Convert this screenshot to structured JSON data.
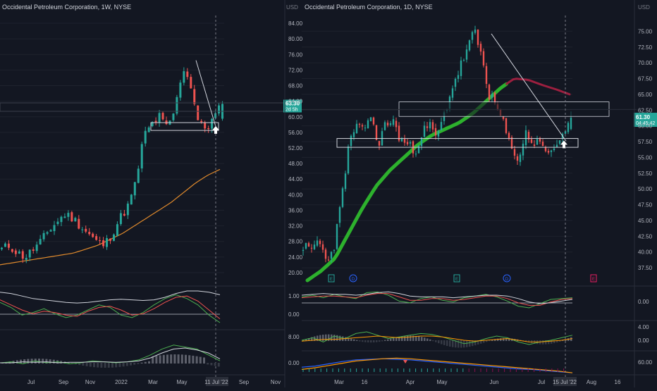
{
  "colors": {
    "background": "#131722",
    "grid": "#1e222d",
    "divider": "#2a2e39",
    "axis_text": "#b2b5be",
    "bull": "#26a69a",
    "bear": "#ef5350",
    "ma_up": "#2db12d",
    "ma_down": "#9c1f3f",
    "ma_weekly": "#e08a2c",
    "price_label_bg": "#26a69a",
    "white": "#d1d4dc",
    "macd_fast": "#4caf50",
    "macd_slow": "#ef5350",
    "osc_orange": "#ff9800",
    "osc_blue": "#2962ff"
  },
  "left_chart": {
    "title": "Occidental Petroleum Corporation, 1W, NYSE",
    "currency": "USD",
    "price_ticks": [
      "84.00",
      "80.00",
      "76.00",
      "72.00",
      "68.00",
      "64.00",
      "60.00",
      "56.00",
      "52.00",
      "48.00",
      "44.00",
      "40.00",
      "36.00",
      "32.00",
      "28.00",
      "24.00",
      "20.00"
    ],
    "last_price": "63.30",
    "countdown": "2d 5h",
    "osc1_ticks": [
      "1.00",
      "0.00"
    ],
    "osc2_ticks": [
      "8.00",
      "0.00"
    ],
    "time_ticks": [
      "Jul",
      "Sep",
      "Nov",
      "2022",
      "Mar",
      "May",
      "11 Jul '22",
      "Sep",
      "Nov"
    ]
  },
  "right_chart": {
    "title": "Occidental Petroleum Corporation, 1D, NYSE",
    "currency": "USD",
    "price_ticks": [
      "75.00",
      "72.50",
      "70.00",
      "67.50",
      "65.00",
      "62.50",
      "60.00",
      "57.50",
      "55.00",
      "52.50",
      "50.00",
      "47.50",
      "45.00",
      "42.50",
      "40.00",
      "37.50"
    ],
    "last_price": "61.30",
    "countdown": "04:45:42",
    "osc1_ticks": [
      "0.00"
    ],
    "osc2_ticks": [
      "4.00",
      "0.00"
    ],
    "osc3_ticks": [
      "60.00"
    ],
    "time_ticks": [
      "Mar",
      "16",
      "Apr",
      "May",
      "Jun",
      "Jul",
      "15 Jul '22",
      "Aug",
      "16"
    ],
    "events": [
      "E",
      "D",
      "E",
      "D",
      "E"
    ]
  },
  "chart_data": [
    {
      "type": "candlestick",
      "title": "Occidental Petroleum Corporation, 1W, NYSE",
      "interval": "1W",
      "ylim": [
        18,
        86
      ],
      "x_ticks": [
        "Jul",
        "Sep",
        "Nov",
        "2022",
        "Mar",
        "May",
        "11 Jul '22",
        "Sep",
        "Nov"
      ],
      "last": 63.3,
      "moving_average": [
        22,
        22.5,
        23,
        23.5,
        24,
        24.5,
        25,
        26,
        27,
        28.5,
        30,
        32,
        34,
        36,
        38,
        40.5,
        43,
        45,
        46.5
      ],
      "support_zone": [
        56.5,
        58.5
      ],
      "trendline": [
        [
          74.5,
          "May"
        ],
        [
          57.5,
          "11 Jul '22"
        ]
      ]
    },
    {
      "type": "candlestick",
      "title": "Occidental Petroleum Corporation, 1D, NYSE",
      "interval": "1D",
      "ylim": [
        35.5,
        77.5
      ],
      "x_ticks": [
        "Mar",
        "16",
        "Apr",
        "May",
        "Jun",
        "Jul",
        "15 Jul '22",
        "Aug",
        "16"
      ],
      "last": 61.3,
      "moving_average": [
        35.5,
        37,
        39,
        43,
        47,
        50.5,
        53,
        55,
        57,
        58.5,
        59.5,
        60.5,
        62,
        64,
        66,
        67.5,
        67.3,
        66.5,
        65.8,
        65
      ],
      "resistance_zone": [
        61.5,
        63.8
      ],
      "support_zone": [
        56.6,
        58.0
      ],
      "trendline": [
        [
          74.5,
          "Jun"
        ],
        [
          57.5,
          "15 Jul '22"
        ]
      ]
    }
  ]
}
